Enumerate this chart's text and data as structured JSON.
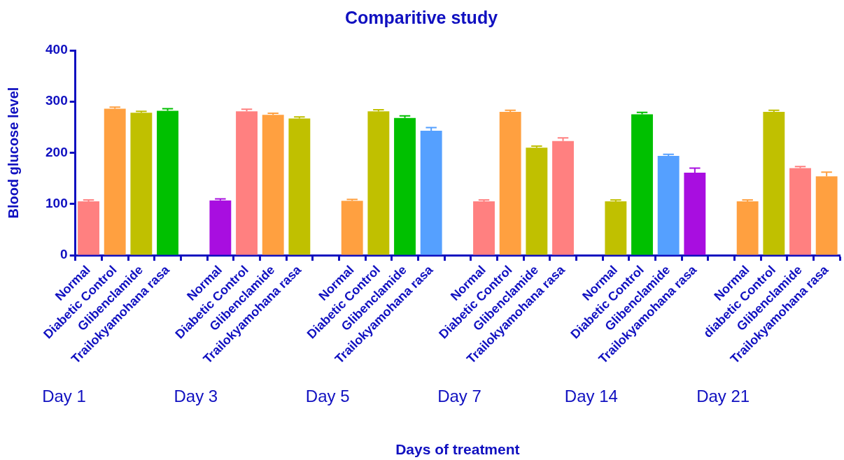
{
  "chart_data": {
    "type": "bar",
    "title": "Comparitive study",
    "ylabel": "Blood glucose level",
    "categories": [
      "Normal",
      "Diabetic Control",
      "Glibenclamide",
      "Trailokyamohana rasa",
      null,
      "Normal",
      "Diabetic Control",
      "Glibenclamide",
      "Trailokyamohana rasa",
      null,
      "Normal",
      "Diabetic Control",
      "Glibenclamide",
      "Trailokyamohana rasa",
      null,
      "Normal",
      "Diabetic Control",
      "Glibenclamide",
      "Trailokyamohana rasa",
      null,
      "Normal",
      "Diabetic Control",
      "Glibenclamide",
      "Trailokyamohana rasa",
      null,
      "Normal",
      "diabetic Control",
      "Glibenclamide",
      "Trailokyamohana rasa"
    ],
    "values": [
      105,
      286,
      278,
      282,
      null,
      107,
      281,
      274,
      267,
      null,
      106,
      281,
      268,
      243,
      null,
      105,
      280,
      210,
      223,
      null,
      105,
      275,
      194,
      161,
      null,
      105,
      280,
      170,
      154
    ],
    "errors": [
      3,
      3,
      3,
      4,
      null,
      3,
      4,
      3,
      3,
      null,
      3,
      3,
      4,
      6,
      null,
      3,
      3,
      3,
      6,
      null,
      3,
      4,
      3,
      9,
      null,
      3,
      3,
      3,
      8
    ],
    "colors": [
      "#ff8080",
      "#ffa040",
      "#c0c000",
      "#00c000",
      "#ffffff",
      "#a80ee0",
      "#ff8080",
      "#ffa040",
      "#c0c000",
      "#ffffff",
      "#ffa040",
      "#c0c000",
      "#00c000",
      "#55a0ff",
      "#ffffff",
      "#ff8080",
      "#ffa040",
      "#c0c000",
      "#ff8080",
      "#ffffff",
      "#c0c000",
      "#00c000",
      "#55a0ff",
      "#a80ee0",
      "#ffffff",
      "#ffa040",
      "#c0c000",
      "#ff8080",
      "#ffa040"
    ],
    "annotations": [
      "Day 1",
      "Day 3",
      "Day 5",
      "Day 7",
      "Day 14",
      "Day 21",
      "Days of treatment"
    ],
    "ylim": [
      0,
      400
    ],
    "yticks": [
      0,
      100,
      200,
      300,
      400
    ],
    "grid": false,
    "legend": false
  }
}
